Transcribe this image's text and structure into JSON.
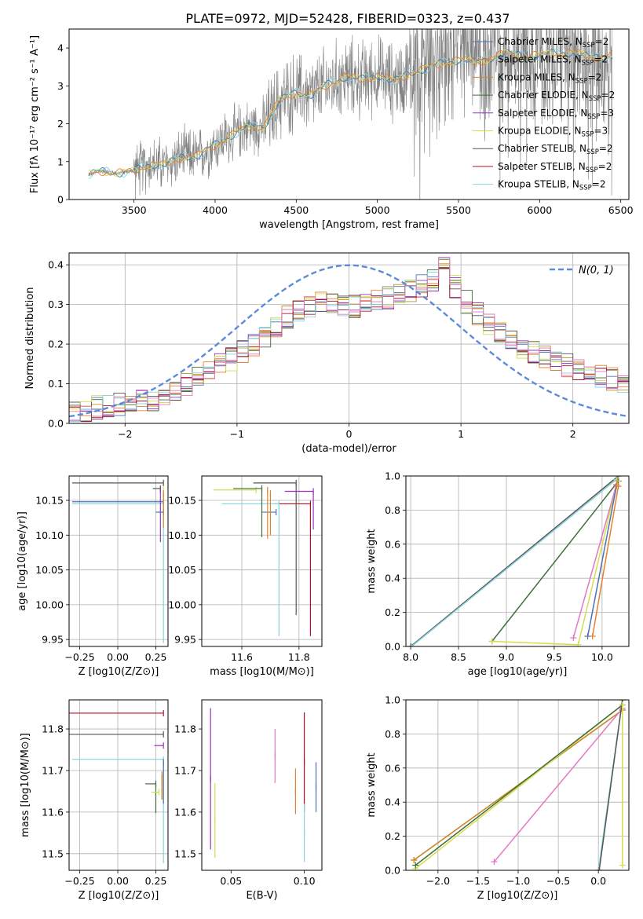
{
  "figure_title": "PLATE=0972, MJD=52428, FIBERID=0323, z=0.437",
  "colors": {
    "Chabrier MILES": "#4c72b0",
    "Salpeter MILES": "#e8812f",
    "Kroupa MILES": "#cc8a2e",
    "Chabrier ELODIE": "#3f6e3a",
    "Salpeter ELODIE": "#9b30c0",
    "Kroupa ELODIE": "#d6dd4a",
    "Chabrier STELIB": "#555555",
    "Salpeter STELIB": "#b0102a",
    "Kroupa STELIB": "#86d4dc",
    "extra_pink": "#e377c2",
    "observed": "#808080",
    "gauss": "#5b8bd9"
  },
  "chart_data": [
    {
      "id": "spectrum",
      "type": "line",
      "xlabel": "wavelength [Angstrom, rest frame]",
      "ylabel": "Flux [fλ 10⁻¹⁷ erg cm⁻² s⁻¹ A⁻¹]",
      "xlim": [
        3100,
        6550
      ],
      "ylim": [
        0,
        4.5
      ],
      "xticks": [
        3500,
        4000,
        4500,
        5000,
        5500,
        6000,
        6500
      ],
      "yticks": [
        0,
        1,
        2,
        3,
        4
      ],
      "grid": false,
      "legend_position": "top-right",
      "legend": [
        {
          "model": "Chabrier MILES",
          "label": "Chabrier MILES, N",
          "n": "2"
        },
        {
          "model": "Salpeter MILES",
          "label": "Salpeter MILES, N",
          "n": "2"
        },
        {
          "model": "Kroupa MILES",
          "label": "Kroupa MILES, N",
          "n": "2"
        },
        {
          "model": "Chabrier ELODIE",
          "label": "Chabrier ELODIE, N",
          "n": "2"
        },
        {
          "model": "Salpeter ELODIE",
          "label": "Salpeter ELODIE, N",
          "n": "3"
        },
        {
          "model": "Kroupa ELODIE",
          "label": "Kroupa ELODIE, N",
          "n": "3"
        },
        {
          "model": "Chabrier STELIB",
          "label": "Chabrier STELIB, N",
          "n": "2"
        },
        {
          "model": "Salpeter STELIB",
          "label": "Salpeter STELIB, N",
          "n": "2"
        },
        {
          "model": "Kroupa STELIB",
          "label": "Kroupa STELIB, N",
          "n": "2"
        }
      ],
      "legend_subscript": "SSP",
      "continuum_x": [
        3220,
        3300,
        3400,
        3500,
        3600,
        3700,
        3800,
        3900,
        4000,
        4100,
        4200,
        4300,
        4400,
        4500,
        4600,
        4700,
        4800,
        4900,
        5000,
        5100,
        5200,
        5300,
        5400,
        5500,
        5600,
        5700,
        5800,
        5900,
        6000,
        6100,
        6200,
        6300,
        6400
      ],
      "continuum_y": [
        0.65,
        0.75,
        0.7,
        0.75,
        0.95,
        0.9,
        1.15,
        1.15,
        1.45,
        1.7,
        1.9,
        1.95,
        2.6,
        2.85,
        2.75,
        3.05,
        3.25,
        3.15,
        3.3,
        3.1,
        3.35,
        3.45,
        3.6,
        3.7,
        3.6,
        3.75,
        3.85,
        3.8,
        3.8,
        3.85,
        3.9,
        3.75,
        3.8
      ]
    },
    {
      "id": "residuals",
      "type": "line",
      "xlabel": "(data-model)/error",
      "ylabel": "Normed distribution",
      "xlim": [
        -2.5,
        2.5
      ],
      "ylim": [
        0,
        0.43
      ],
      "xticks": [
        -2,
        -1,
        0,
        1,
        2
      ],
      "yticks": [
        0.0,
        0.1,
        0.2,
        0.3,
        0.4
      ],
      "grid": true,
      "legend_position": "top-right",
      "gauss_label": "N(0, 1)",
      "gauss_mean": 0,
      "gauss_sigma": 1,
      "hist_x": [
        -2.5,
        -2.25,
        -2.0,
        -1.75,
        -1.5,
        -1.25,
        -1.0,
        -0.75,
        -0.5,
        -0.25,
        0.0,
        0.25,
        0.5,
        0.75,
        0.85,
        1.0,
        1.25,
        1.5,
        1.75,
        2.0,
        2.25,
        2.5
      ],
      "hist_y": [
        0.02,
        0.04,
        0.05,
        0.06,
        0.09,
        0.13,
        0.17,
        0.22,
        0.28,
        0.31,
        0.29,
        0.31,
        0.33,
        0.36,
        0.4,
        0.32,
        0.25,
        0.2,
        0.17,
        0.14,
        0.12,
        0.1
      ]
    },
    {
      "id": "age_vs_Z",
      "type": "scatter",
      "xlabel": "Z [log10(Z/Z⊙)]",
      "ylabel": "age  [log10(age/yr)]",
      "xlim": [
        -0.32,
        0.33
      ],
      "ylim": [
        9.94,
        10.185
      ],
      "xticks": [
        -0.25,
        0.0,
        0.25
      ],
      "yticks": [
        9.95,
        10.0,
        10.05,
        10.1,
        10.15
      ],
      "grid": true,
      "points": [
        {
          "model": "Chabrier STELIB",
          "x": 0.3,
          "y": 10.175,
          "xerr_lo": 0.6,
          "yerr_lo": 0.0
        },
        {
          "model": "Kroupa STELIB",
          "x": 0.3,
          "y": 10.145,
          "xerr_lo": 0.6,
          "yerr_lo": 0.2
        },
        {
          "model": "Chabrier MILES",
          "x": 0.3,
          "y": 10.148,
          "xerr_lo": 0.6,
          "yerr_lo": 0.0
        },
        {
          "model": "Chabrier ELODIE",
          "x": 0.28,
          "y": 10.167,
          "xerr_lo": 0.05,
          "yerr_lo": 0.0
        },
        {
          "model": "Kroupa ELODIE",
          "x": 0.3,
          "y": 10.165,
          "xerr_lo": 0.0,
          "yerr_lo": 0.03
        },
        {
          "model": "Salpeter ELODIE",
          "x": 0.28,
          "y": 10.165,
          "xerr_lo": 0.0,
          "yerr_lo": 0.075
        },
        {
          "model": "Chabrier MILES",
          "x": 0.3,
          "y": 10.133,
          "xerr_lo": 0.05,
          "yerr_lo": 0.0
        },
        {
          "model": "Kroupa MILES",
          "x": 0.3,
          "y": 10.16,
          "xerr_lo": 0.0,
          "yerr_lo": 0.05
        }
      ]
    },
    {
      "id": "age_vs_mass",
      "type": "scatter",
      "xlabel": "mass [log10(M/M⊙)]",
      "ylabel": "",
      "xlim": [
        11.46,
        11.88
      ],
      "ylim": [
        9.94,
        10.185
      ],
      "xticks": [
        11.6,
        11.8
      ],
      "yticks": [
        9.95,
        10.0,
        10.05,
        10.1,
        10.15
      ],
      "grid": true,
      "points": [
        {
          "model": "Salpeter STELIB",
          "x": 11.84,
          "y": 10.145,
          "xerr_lo": 0.13,
          "yerr_lo": 0.19
        },
        {
          "model": "Chabrier STELIB",
          "x": 11.79,
          "y": 10.175,
          "xerr_lo": 0.15,
          "yerr_lo": 0.19
        },
        {
          "model": "Kroupa STELIB",
          "x": 11.73,
          "y": 10.145,
          "xerr_lo": 0.2,
          "yerr_lo": 0.19
        },
        {
          "model": "Salpeter ELODIE",
          "x": 11.85,
          "y": 10.163,
          "xerr_lo": 0.1,
          "yerr_lo": 0.055
        },
        {
          "model": "Chabrier MILES",
          "x": 11.72,
          "y": 10.133,
          "xerr_lo": 0.05,
          "yerr_lo": 0.0
        },
        {
          "model": "Kroupa ELODIE",
          "x": 11.65,
          "y": 10.165,
          "xerr_lo": 0.15,
          "yerr_lo": 0.0
        },
        {
          "model": "Chabrier ELODIE",
          "x": 11.67,
          "y": 10.167,
          "xerr_lo": 0.1,
          "yerr_lo": 0.07
        },
        {
          "model": "Salpeter MILES",
          "x": 11.69,
          "y": 10.165,
          "xerr_lo": 0.0,
          "yerr_lo": 0.07
        },
        {
          "model": "Kroupa MILES",
          "x": 11.7,
          "y": 10.16,
          "xerr_lo": 0.0,
          "yerr_lo": 0.06
        }
      ]
    },
    {
      "id": "weight_vs_age",
      "type": "line",
      "xlabel": "age  [log10(age/yr)]",
      "ylabel": "mass weight",
      "xlim": [
        7.95,
        10.28
      ],
      "ylim": [
        0,
        1.0
      ],
      "xticks": [
        8.0,
        8.5,
        9.0,
        9.5,
        10.0
      ],
      "yticks": [
        0.0,
        0.2,
        0.4,
        0.6,
        0.8,
        1.0
      ],
      "grid": true,
      "series": [
        {
          "model": "Chabrier STELIB",
          "x": [
            8.0,
            10.17
          ],
          "y": [
            0.0,
            1.0
          ]
        },
        {
          "model": "Kroupa STELIB",
          "x": [
            8.01,
            10.15
          ],
          "y": [
            0.0,
            0.98
          ]
        },
        {
          "model": "Chabrier ELODIE",
          "x": [
            8.85,
            10.17
          ],
          "y": [
            0.03,
            0.97
          ]
        },
        {
          "model": "Kroupa ELODIE",
          "x": [
            8.85,
            9.75,
            10.16
          ],
          "y": [
            0.03,
            0.01,
            0.97
          ]
        },
        {
          "model": "extra_pink",
          "x": [
            9.7,
            10.15
          ],
          "y": [
            0.05,
            0.95
          ]
        },
        {
          "model": "Chabrier MILES",
          "x": [
            9.85,
            10.15
          ],
          "y": [
            0.06,
            0.94
          ]
        },
        {
          "model": "Salpeter MILES",
          "x": [
            9.9,
            10.17
          ],
          "y": [
            0.06,
            0.94
          ]
        },
        {
          "model": "Kroupa MILES",
          "x": [
            10.15,
            10.17
          ],
          "y": [
            0.94,
            1.0
          ]
        }
      ]
    },
    {
      "id": "mass_vs_Z",
      "type": "scatter",
      "xlabel": "Z [log10(Z/Z⊙)]",
      "ylabel": "mass [log10(M/M⊙)]",
      "xlim": [
        -0.32,
        0.33
      ],
      "ylim": [
        11.46,
        11.87
      ],
      "xticks": [
        -0.25,
        0.0,
        0.25
      ],
      "yticks": [
        11.5,
        11.6,
        11.7,
        11.8
      ],
      "grid": true,
      "points": [
        {
          "model": "Salpeter STELIB",
          "x": 0.3,
          "y": 11.838,
          "xerr_lo": 0.65,
          "yerr_lo": 0.0
        },
        {
          "model": "Chabrier STELIB",
          "x": 0.3,
          "y": 11.787,
          "xerr_lo": 0.65,
          "yerr_lo": 0.0
        },
        {
          "model": "Kroupa STELIB",
          "x": 0.3,
          "y": 11.727,
          "xerr_lo": 0.6,
          "yerr_lo": 0.25
        },
        {
          "model": "Salpeter ELODIE",
          "x": 0.3,
          "y": 11.76,
          "xerr_lo": 0.06,
          "yerr_lo": 0.0
        },
        {
          "model": "Chabrier ELODIE",
          "x": 0.25,
          "y": 11.668,
          "xerr_lo": 0.07,
          "yerr_lo": 0.07
        },
        {
          "model": "Kroupa ELODIE",
          "x": 0.27,
          "y": 11.648,
          "xerr_lo": 0.05,
          "yerr_lo": 0.0
        },
        {
          "model": "Salpeter MILES",
          "x": 0.29,
          "y": 11.69,
          "xerr_lo": 0.0,
          "yerr_lo": 0.06
        },
        {
          "model": "Kroupa MILES",
          "x": 0.29,
          "y": 11.68,
          "xerr_lo": 0.0,
          "yerr_lo": 0.05
        },
        {
          "model": "Chabrier MILES",
          "x": 0.3,
          "y": 11.72,
          "xerr_lo": 0.0,
          "yerr_lo": 0.1
        }
      ]
    },
    {
      "id": "mass_vs_EBV",
      "type": "scatter",
      "xlabel": "E(B-V)",
      "ylabel": "",
      "xlim": [
        0.03,
        0.112
      ],
      "ylim": [
        11.46,
        11.87
      ],
      "xticks": [
        0.05,
        0.1
      ],
      "yticks": [
        11.5,
        11.6,
        11.7,
        11.8
      ],
      "grid": false,
      "points": [
        {
          "model": "Salpeter ELODIE",
          "x": 0.036,
          "y": 11.68,
          "yerr": 0.17
        },
        {
          "model": "Kroupa ELODIE",
          "x": 0.039,
          "y": 11.58,
          "yerr": 0.09
        },
        {
          "model": "extra_pink",
          "x": 0.08,
          "y": 11.735,
          "yerr": 0.065
        },
        {
          "model": "Salpeter MILES",
          "x": 0.094,
          "y": 11.65,
          "yerr": 0.055
        },
        {
          "model": "Salpeter STELIB",
          "x": 0.1,
          "y": 11.72,
          "yerr": 0.12
        },
        {
          "model": "Kroupa STELIB",
          "x": 0.1,
          "y": 11.55,
          "yerr": 0.07
        },
        {
          "model": "Chabrier MILES",
          "x": 0.108,
          "y": 11.66,
          "yerr": 0.06
        }
      ]
    },
    {
      "id": "weight_vs_Z",
      "type": "line",
      "xlabel": "Z [log10(Z/Z⊙)]",
      "ylabel": "mass weight",
      "xlim": [
        -2.4,
        0.38
      ],
      "ylim": [
        0,
        1.0
      ],
      "xticks": [
        -2.0,
        -1.5,
        -1.0,
        -0.5,
        0.0
      ],
      "yticks": [
        0.0,
        0.2,
        0.4,
        0.6,
        0.8,
        1.0
      ],
      "grid": true,
      "series": [
        {
          "model": "Salpeter MILES",
          "x": [
            -2.3,
            0.3
          ],
          "y": [
            0.06,
            0.94
          ]
        },
        {
          "model": "Kroupa MILES",
          "x": [
            -2.3,
            0.3
          ],
          "y": [
            0.06,
            0.94
          ]
        },
        {
          "model": "Kroupa ELODIE",
          "x": [
            -2.28,
            0.3
          ],
          "y": [
            0.01,
            0.97
          ]
        },
        {
          "model": "Chabrier ELODIE",
          "x": [
            -2.28,
            0.3
          ],
          "y": [
            0.03,
            0.97
          ]
        },
        {
          "model": "extra_pink",
          "x": [
            -1.3,
            0.3
          ],
          "y": [
            0.05,
            0.95
          ]
        },
        {
          "model": "Kroupa STELIB",
          "x": [
            0.0,
            0.3
          ],
          "y": [
            0.0,
            1.0
          ]
        },
        {
          "model": "Chabrier STELIB",
          "x": [
            0.01,
            0.3
          ],
          "y": [
            0.0,
            1.0
          ]
        },
        {
          "model": "Kroupa ELODIE",
          "x": [
            0.3,
            0.3
          ],
          "y": [
            0.03,
            0.97
          ]
        }
      ]
    }
  ]
}
